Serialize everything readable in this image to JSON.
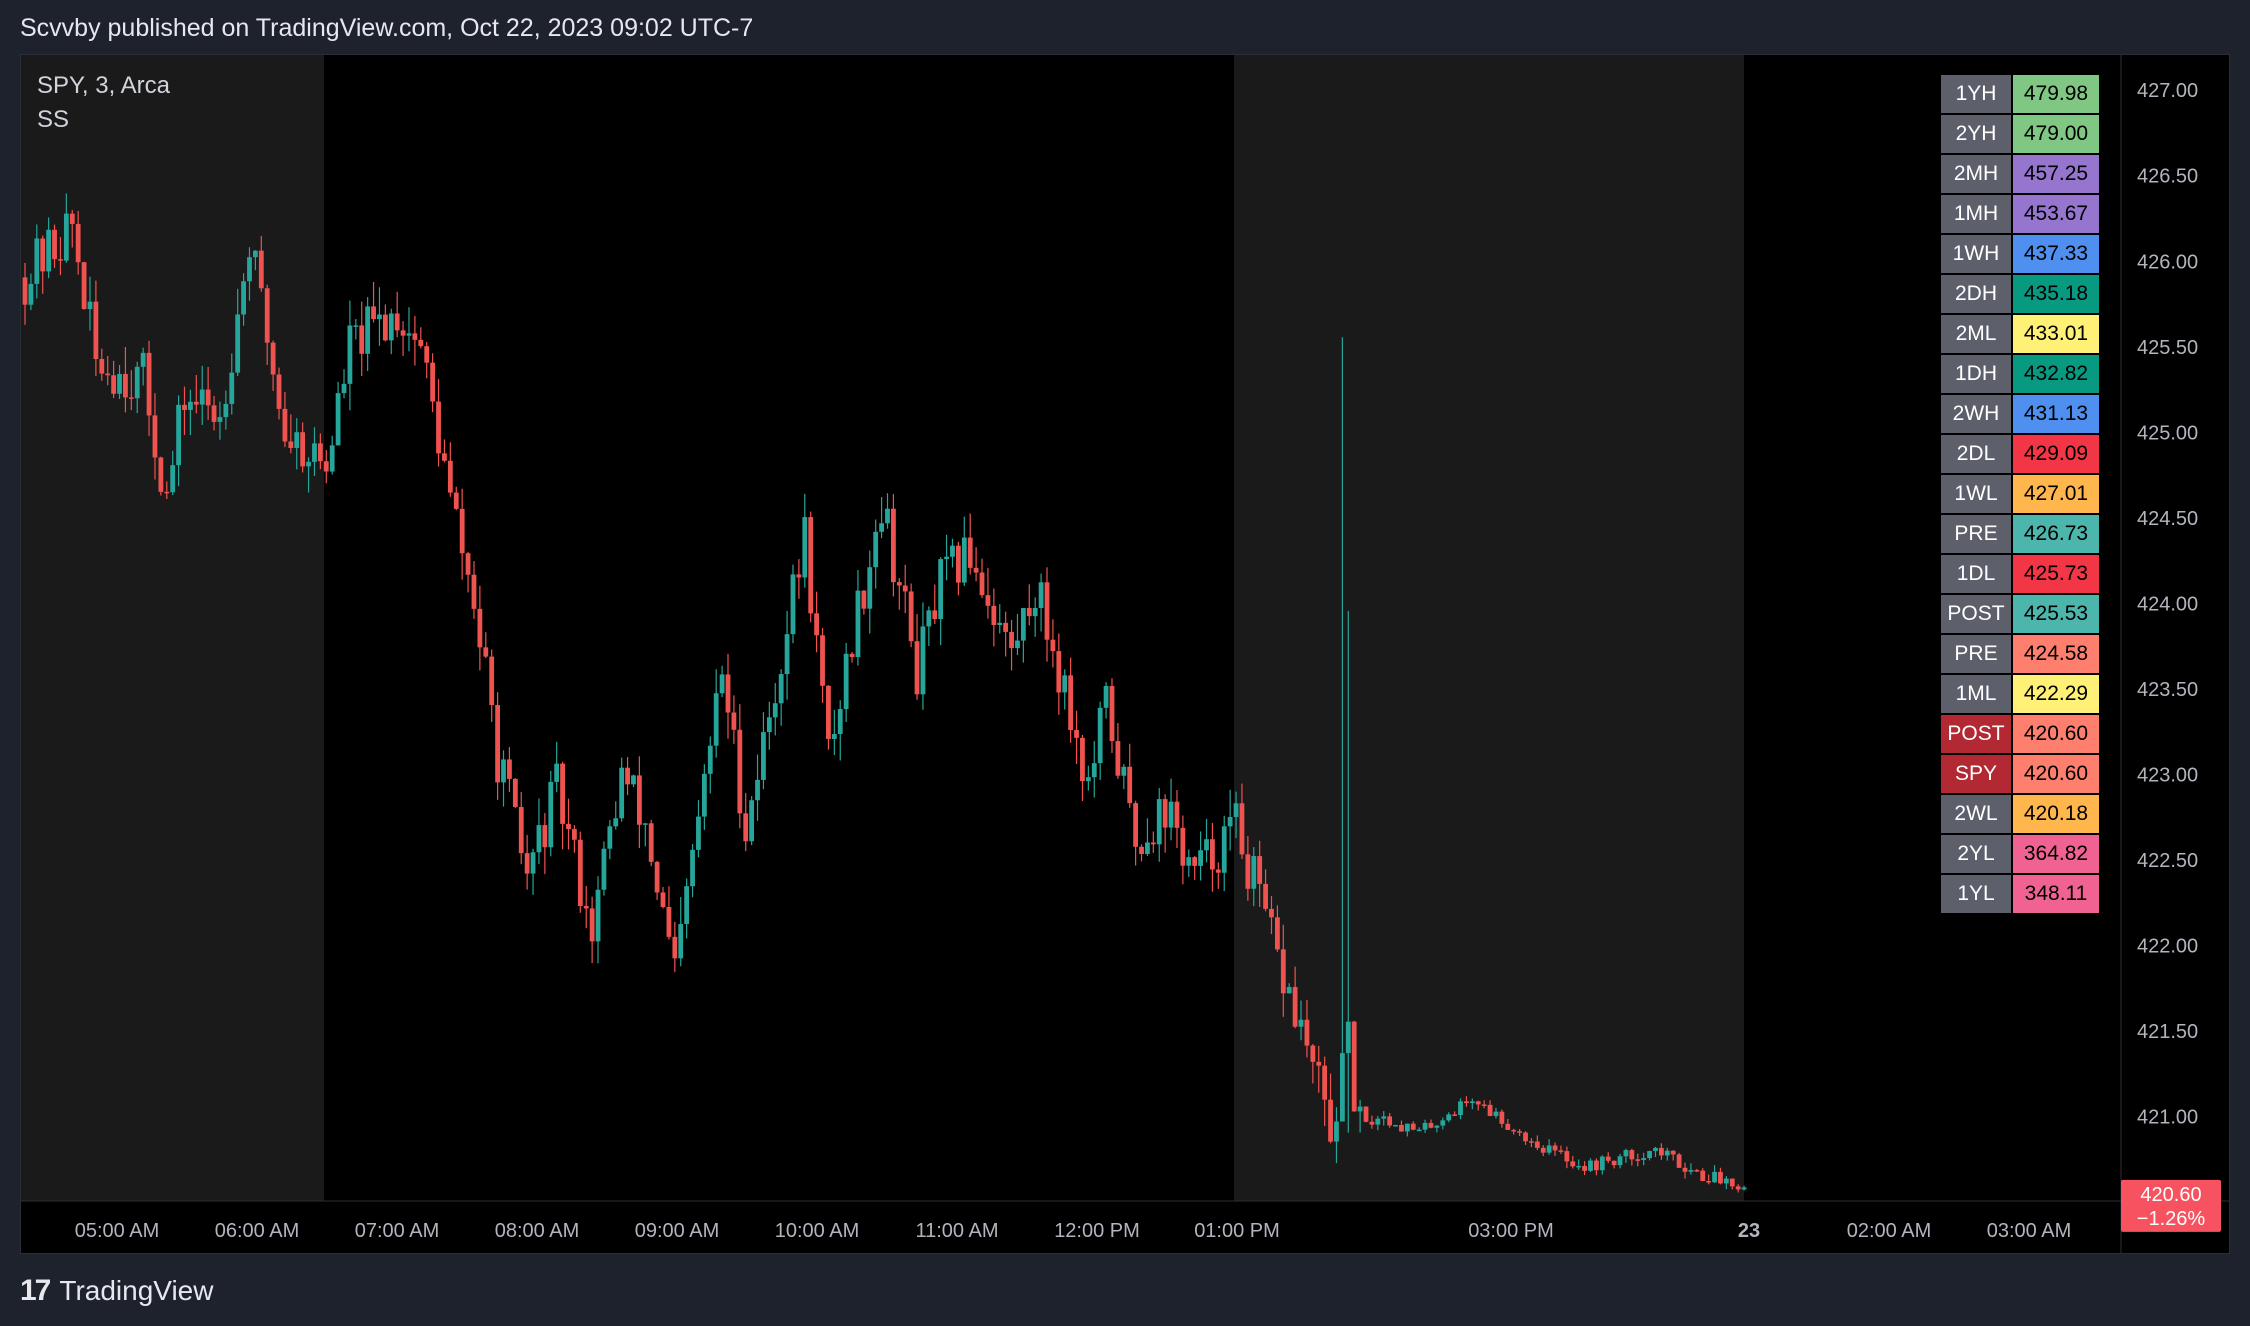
{
  "header": {
    "published": "Scvvby published on TradingView.com, Oct 22, 2023 09:02 UTC-7"
  },
  "legend": {
    "symbol": "SPY, 3, Arca",
    "indicator": "SS"
  },
  "footer": {
    "brand": "TradingView"
  },
  "colors": {
    "up": "#26a69a",
    "down": "#ef5350",
    "session_shade": "#1a1a1a",
    "background": "#000000"
  },
  "levels": [
    {
      "name": "1YH",
      "value": "479.98",
      "color": "#81c784"
    },
    {
      "name": "2YH",
      "value": "479.00",
      "color": "#81c784"
    },
    {
      "name": "2MH",
      "value": "457.25",
      "color": "#9575cd"
    },
    {
      "name": "1MH",
      "value": "453.67",
      "color": "#9575cd"
    },
    {
      "name": "1WH",
      "value": "437.33",
      "color": "#4e8ff0"
    },
    {
      "name": "2DH",
      "value": "435.18",
      "color": "#089981"
    },
    {
      "name": "2ML",
      "value": "433.01",
      "color": "#fff176"
    },
    {
      "name": "1DH",
      "value": "432.82",
      "color": "#089981"
    },
    {
      "name": "2WH",
      "value": "431.13",
      "color": "#4e8ff0"
    },
    {
      "name": "2DL",
      "value": "429.09",
      "color": "#f23645"
    },
    {
      "name": "1WL",
      "value": "427.01",
      "color": "#ffb74d"
    },
    {
      "name": "PRE",
      "value": "426.73",
      "color": "#4db6ac"
    },
    {
      "name": "1DL",
      "value": "425.73",
      "color": "#f23645"
    },
    {
      "name": "POST",
      "value": "425.53",
      "color": "#4db6ac"
    },
    {
      "name": "PRE",
      "value": "424.58",
      "color": "#ff7f6e"
    },
    {
      "name": "1ML",
      "value": "422.29",
      "color": "#fff176"
    },
    {
      "name": "POST",
      "value": "420.60",
      "color": "#ff7f6e",
      "name_bg": "#b22833"
    },
    {
      "name": "SPY",
      "value": "420.60",
      "color": "#ff7f6e",
      "name_bg": "#b22833"
    },
    {
      "name": "2WL",
      "value": "420.18",
      "color": "#ffb74d"
    },
    {
      "name": "2YL",
      "value": "364.82",
      "color": "#f06292"
    },
    {
      "name": "1YL",
      "value": "348.11",
      "color": "#f06292"
    }
  ],
  "chart_data": {
    "type": "candlestick",
    "y_axis": {
      "min": 420.5,
      "max": 427.2,
      "ticks": [
        "427.00",
        "426.50",
        "426.00",
        "425.50",
        "425.00",
        "424.50",
        "424.00",
        "423.50",
        "423.00",
        "422.50",
        "422.00",
        "421.50",
        "421.00"
      ]
    },
    "x_axis": {
      "ticks": [
        "05:00 AM",
        "06:00 AM",
        "07:00 AM",
        "08:00 AM",
        "09:00 AM",
        "10:00 AM",
        "11:00 AM",
        "12:00 PM",
        "01:00 PM",
        "03:00 PM",
        "23",
        "02:00 AM",
        "03:00 AM"
      ]
    },
    "last_price": {
      "value": "420.60",
      "change": "−1.26%"
    },
    "close_path": [
      [
        0,
        425.9
      ],
      [
        8,
        426.2
      ],
      [
        12,
        425.4
      ],
      [
        20,
        425.3
      ],
      [
        24,
        424.6
      ],
      [
        27,
        425.2
      ],
      [
        33,
        425.1
      ],
      [
        38,
        426.1
      ],
      [
        44,
        425.0
      ],
      [
        51,
        424.8
      ],
      [
        55,
        425.5
      ],
      [
        63,
        425.7
      ],
      [
        67,
        425.5
      ],
      [
        72,
        424.6
      ],
      [
        76,
        424.0
      ],
      [
        80,
        423.1
      ],
      [
        85,
        422.4
      ],
      [
        90,
        422.9
      ],
      [
        96,
        422.1
      ],
      [
        101,
        423.0
      ],
      [
        105,
        422.7
      ],
      [
        110,
        421.8
      ],
      [
        113,
        422.5
      ],
      [
        118,
        423.6
      ],
      [
        122,
        422.7
      ],
      [
        127,
        423.5
      ],
      [
        132,
        424.4
      ],
      [
        136,
        423.1
      ],
      [
        140,
        423.8
      ],
      [
        145,
        424.6
      ],
      [
        151,
        423.6
      ],
      [
        155,
        424.1
      ],
      [
        160,
        424.3
      ],
      [
        167,
        423.7
      ],
      [
        171,
        424.1
      ],
      [
        176,
        423.5
      ],
      [
        180,
        422.9
      ],
      [
        183,
        423.4
      ],
      [
        188,
        422.6
      ],
      [
        193,
        422.8
      ],
      [
        198,
        422.4
      ],
      [
        205,
        422.7
      ],
      [
        212,
        421.9
      ],
      [
        217,
        421.4
      ],
      [
        221,
        420.9
      ],
      [
        224,
        421.4
      ],
      [
        226,
        420.9
      ],
      [
        229,
        421.0
      ],
      [
        236,
        420.9
      ],
      [
        245,
        421.1
      ],
      [
        255,
        420.85
      ],
      [
        264,
        420.7
      ],
      [
        276,
        420.8
      ],
      [
        284,
        420.65
      ],
      [
        291,
        420.6
      ]
    ],
    "spikes": [
      {
        "bar": 223,
        "high": 425.55,
        "low": 421.0
      },
      {
        "bar": 224,
        "high": 423.95,
        "low": 420.9
      }
    ]
  }
}
